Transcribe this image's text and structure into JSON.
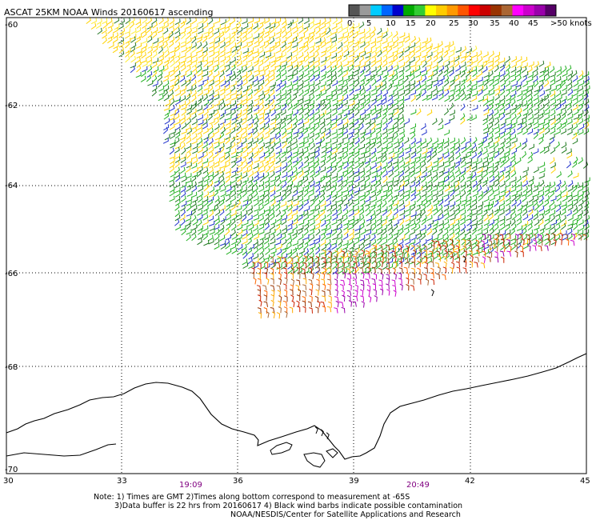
{
  "title": "ASCAT 25KM NOAA Winds 20160617 ascending",
  "colorbar": {
    "colors": [
      "#555555",
      "#9a9a9a",
      "#00ccff",
      "#0066ff",
      "#0000cc",
      "#00aa00",
      "#33cc33",
      "#ffff00",
      "#ffcc00",
      "#ff9900",
      "#ff5500",
      "#ff0000",
      "#cc0000",
      "#993300",
      "#aa6633",
      "#ff00ff",
      "#cc00cc",
      "#9900aa",
      "#550066"
    ],
    "tick_labels": [
      "0",
      "5",
      "10",
      "15",
      "20",
      "25",
      "30",
      "35",
      "40",
      "45",
      ">50 knots"
    ]
  },
  "axes": {
    "lon_labels": [
      "30",
      "33",
      "36",
      "39",
      "42",
      "45"
    ],
    "lat_labels": [
      "-60",
      "-62",
      "-64",
      "-66",
      "-68",
      "-70"
    ]
  },
  "pass_times": [
    "19:09",
    "20:49"
  ],
  "note": {
    "line1": "Note: 1) Times are GMT 2)Times along bottom correspond to measurement at -65S",
    "line2": "3)Data buffer is 22 hrs from 20160617 4) Black wind barbs indicate possible contamination",
    "line3": "NOAA/NESDIS/Center for Satellite Applications and Research"
  }
}
